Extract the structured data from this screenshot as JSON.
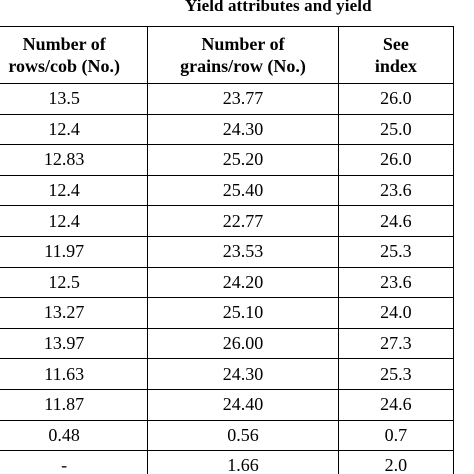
{
  "group_header": "Yield attributes and yield",
  "columns": [
    {
      "line1": "Number of",
      "line2": "rows/cob (No.)"
    },
    {
      "line1": "Number of",
      "line2": "grains/row (No.)"
    },
    {
      "line1": "See",
      "line2": "index"
    }
  ],
  "rows": [
    [
      "13.5",
      "23.77",
      "26.0"
    ],
    [
      "12.4",
      "24.30",
      "25.0"
    ],
    [
      "12.83",
      "25.20",
      "26.0"
    ],
    [
      "12.4",
      "25.40",
      "23.6"
    ],
    [
      "12.4",
      "22.77",
      "24.6"
    ],
    [
      "11.97",
      "23.53",
      "25.3"
    ],
    [
      "12.5",
      "24.20",
      "23.6"
    ],
    [
      "13.27",
      "25.10",
      "24.0"
    ],
    [
      "13.97",
      "26.00",
      "27.3"
    ],
    [
      "11.63",
      "24.30",
      "25.3"
    ],
    [
      "11.87",
      "24.40",
      "24.6"
    ],
    [
      "0.48",
      "0.56",
      "0.7"
    ],
    [
      "-",
      "1.66",
      "2.0"
    ]
  ]
}
